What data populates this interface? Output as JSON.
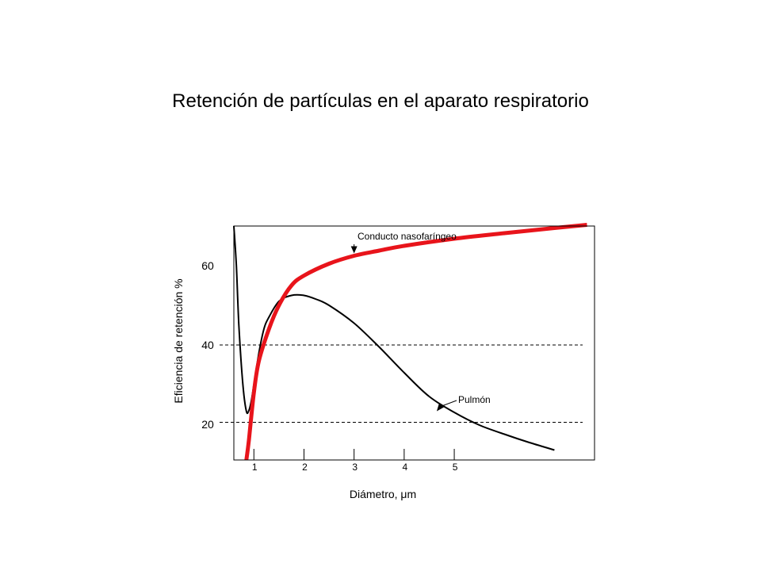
{
  "title": "Retención de partículas en el aparato respiratorio",
  "chart_data": {
    "type": "line",
    "title": "Retención de partículas en el aparato respiratorio",
    "xlabel": "Diámetro, μm",
    "ylabel": "Eficiencia de retención %",
    "x_ticks": [
      "1",
      "2",
      "3",
      "4",
      "5"
    ],
    "y_ticks": [
      "20",
      "40",
      "60"
    ],
    "xlim": [
      0.6,
      7.8
    ],
    "ylim": [
      11,
      70
    ],
    "reference_lines": [
      40,
      20.5
    ],
    "colors": {
      "nasopharyngeal": "#e8141b",
      "lung": "#000000",
      "axes": "#000000"
    },
    "series": [
      {
        "key": "nasopharyngeal",
        "x": [
          0.85,
          0.9,
          1.0,
          1.1,
          1.3,
          1.5,
          1.75,
          2.0,
          2.5,
          3.0,
          3.5,
          4.0,
          5.0,
          6.0,
          7.0,
          7.65
        ],
        "y": [
          11,
          16,
          28,
          36,
          44,
          50,
          55,
          57.5,
          60.5,
          62.5,
          63.8,
          65.0,
          66.8,
          68.2,
          69.5,
          70.3
        ]
      },
      {
        "key": "lung",
        "x": [
          0.6,
          0.65,
          0.7,
          0.78,
          0.85,
          0.9,
          0.95,
          1.0,
          1.1,
          1.2,
          1.3,
          1.5,
          1.75,
          2.0,
          2.25,
          2.5,
          3.0,
          3.5,
          4.0,
          4.5,
          5.0,
          5.5,
          6.0,
          6.5,
          7.0
        ],
        "y": [
          70,
          60,
          45,
          30,
          23.3,
          23.5,
          26,
          30,
          38,
          44,
          47,
          51,
          52.5,
          52.5,
          51.5,
          50,
          45.5,
          39.5,
          33,
          27,
          23,
          19.8,
          17.5,
          15.4,
          13.5
        ]
      }
    ],
    "annotations": [
      {
        "text": "Conducto nasofaríngeo",
        "series": "nasopharyngeal",
        "x": 3.0,
        "y": 62.5
      },
      {
        "text": "Pulmón",
        "series": "lung",
        "x": 4.65,
        "y": 23.5
      }
    ]
  }
}
